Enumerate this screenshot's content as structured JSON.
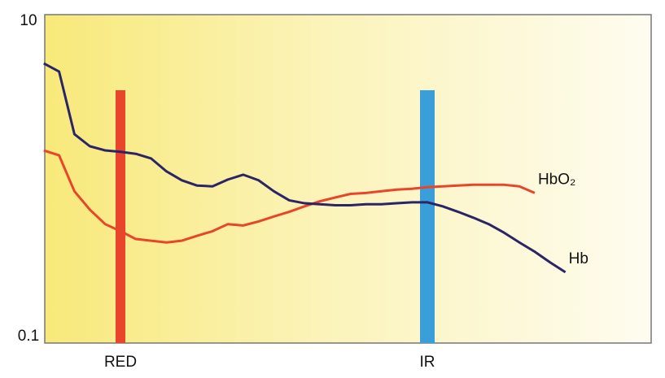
{
  "chart_data": {
    "type": "line",
    "categories": [
      null,
      null,
      null,
      null,
      null,
      "RED",
      null,
      null,
      null,
      null,
      null,
      null,
      null,
      null,
      null,
      null,
      null,
      null,
      null,
      null,
      null,
      null,
      null,
      null,
      null,
      "IR",
      null,
      null,
      null,
      null,
      null,
      null,
      null,
      null,
      null
    ],
    "series": [
      {
        "name": "HbO₂",
        "color": "#e8452a",
        "values": [
          1.49,
          1.39,
          0.84,
          0.65,
          0.53,
          0.48,
          0.43,
          0.42,
          0.41,
          0.42,
          0.45,
          0.48,
          0.53,
          0.52,
          0.55,
          0.59,
          0.63,
          0.68,
          0.73,
          0.77,
          0.81,
          0.82,
          0.84,
          0.86,
          0.87,
          0.89,
          0.9,
          0.91,
          0.92,
          0.92,
          0.92,
          0.9,
          0.82,
          null,
          null
        ]
      },
      {
        "name": "Hb",
        "color": "#2b2466",
        "values": [
          5.05,
          4.5,
          1.87,
          1.58,
          1.49,
          1.46,
          1.42,
          1.33,
          1.11,
          0.98,
          0.91,
          0.9,
          0.99,
          1.06,
          0.98,
          0.84,
          0.74,
          0.71,
          0.7,
          0.69,
          0.69,
          0.7,
          0.7,
          0.71,
          0.72,
          0.72,
          0.68,
          0.63,
          0.58,
          0.53,
          0.47,
          0.41,
          0.36,
          0.31,
          0.27
        ]
      }
    ],
    "ylim": [
      0.1,
      10
    ],
    "yticks": [
      0.1,
      10
    ],
    "log_scale": true,
    "grid": false
  }
}
